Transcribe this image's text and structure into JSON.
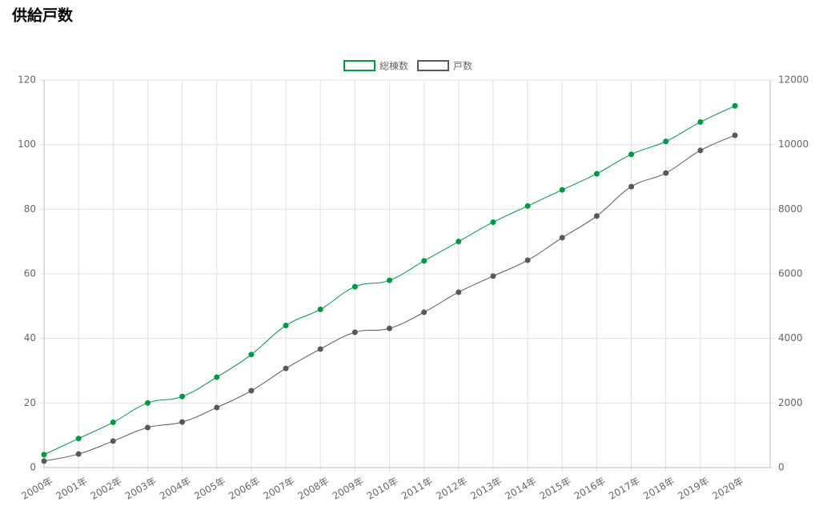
{
  "chart_data": {
    "type": "line",
    "title": "供給戸数",
    "categories": [
      "2000年",
      "2001年",
      "2002年",
      "2003年",
      "2004年",
      "2005年",
      "2006年",
      "2007年",
      "2008年",
      "2009年",
      "2010年",
      "2011年",
      "2012年",
      "2013年",
      "2014年",
      "2015年",
      "2016年",
      "2017年",
      "2018年",
      "2019年",
      "2020年"
    ],
    "series": [
      {
        "name": "総棟数",
        "color": "#009944",
        "values": [
          4,
          9,
          14,
          20,
          22,
          28,
          35,
          44,
          49,
          56,
          58,
          64,
          70,
          76,
          81,
          86,
          91,
          97,
          101,
          107,
          112
        ]
      },
      {
        "name": "戸数",
        "color": "#595757",
        "axis": "y2",
        "values": [
          200,
          420,
          820,
          1240,
          1410,
          1860,
          2380,
          3070,
          3670,
          4190,
          4310,
          4810,
          5430,
          5930,
          6420,
          7120,
          7790,
          8700,
          9120,
          9820,
          10290
        ]
      }
    ],
    "ylim": [
      0,
      120
    ],
    "yticks": [
      0,
      20,
      40,
      60,
      80,
      100,
      120
    ],
    "y2lim": [
      0,
      12000
    ],
    "y2ticks": [
      0,
      2000,
      4000,
      6000,
      8000,
      10000,
      12000
    ],
    "grid": true,
    "legend": "top"
  }
}
